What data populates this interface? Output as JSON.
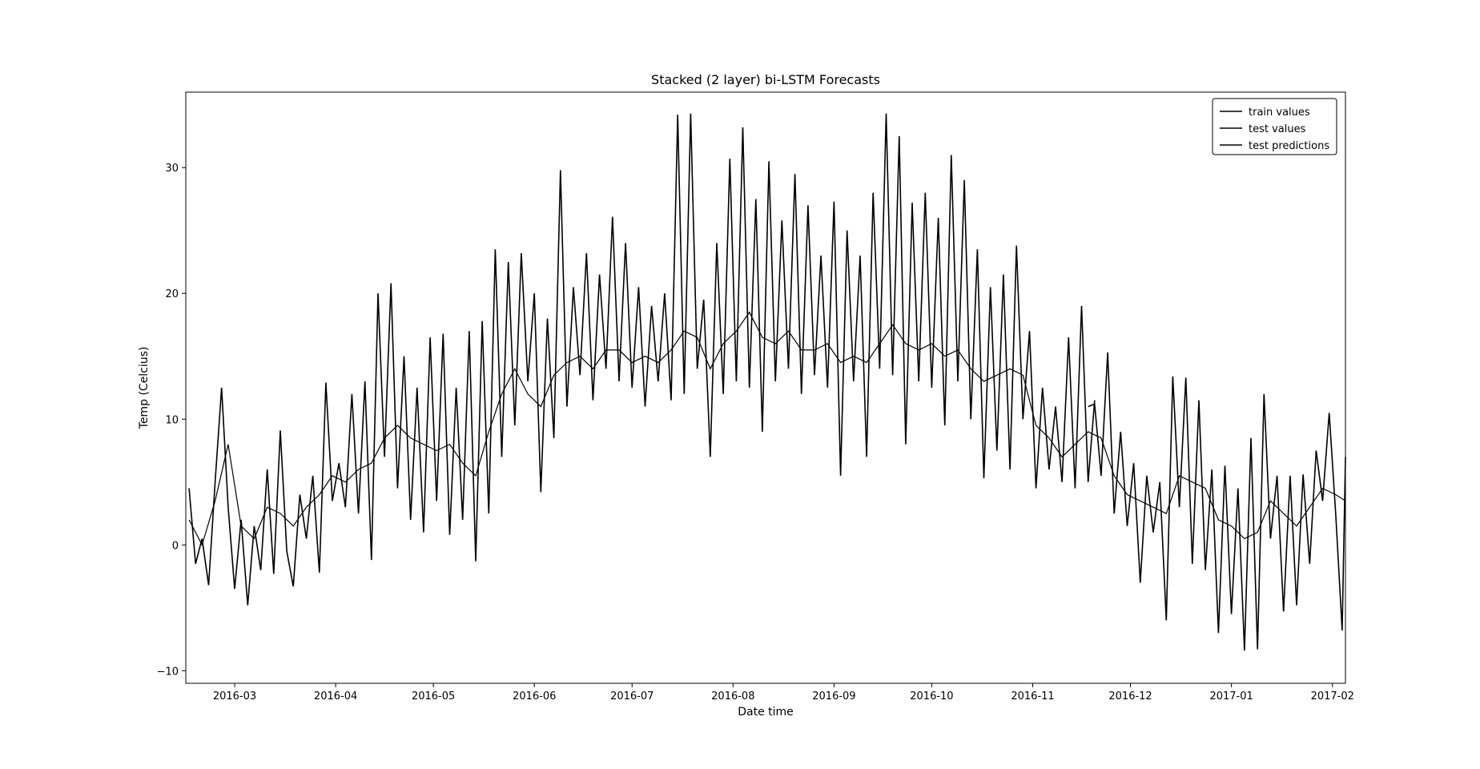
{
  "chart_data": {
    "type": "line",
    "title": "Stacked (2 layer) bi-LSTM Forecasts",
    "xlabel": "Date time",
    "ylabel": "Temp (Celcius)",
    "x_axis": {
      "kind": "date",
      "range": [
        "2016-02-15",
        "2017-02-05"
      ],
      "ticks": [
        "2016-03",
        "2016-04",
        "2016-05",
        "2016-06",
        "2016-07",
        "2016-08",
        "2016-09",
        "2016-10",
        "2016-11",
        "2016-12",
        "2017-01",
        "2017-02"
      ],
      "tick_dates": [
        "2016-03-01",
        "2016-04-01",
        "2016-05-01",
        "2016-06-01",
        "2016-07-01",
        "2016-08-01",
        "2016-09-01",
        "2016-10-01",
        "2016-11-01",
        "2016-12-01",
        "2017-01-01",
        "2017-02-01"
      ]
    },
    "y_axis": {
      "range": [
        -11,
        36
      ],
      "ticks": [
        -10,
        0,
        10,
        20,
        30
      ],
      "tick_labels": [
        "−10",
        "0",
        "10",
        "20",
        "30"
      ]
    },
    "grid": false,
    "legend": {
      "placement": "top-right",
      "entries": [
        "train values",
        "test values",
        "test predictions"
      ]
    },
    "series": [
      {
        "name": "train values",
        "color": "#000000",
        "points": [
          [
            "2016-02-16",
            4.5
          ],
          [
            "2016-02-18",
            -1.5
          ],
          [
            "2016-02-20",
            0.5
          ],
          [
            "2016-02-22",
            -3.2
          ],
          [
            "2016-02-24",
            5.0
          ],
          [
            "2016-02-26",
            12.5
          ],
          [
            "2016-02-28",
            3.0
          ],
          [
            "2016-03-01",
            -3.5
          ],
          [
            "2016-03-03",
            2.0
          ],
          [
            "2016-03-05",
            -4.8
          ],
          [
            "2016-03-07",
            1.5
          ],
          [
            "2016-03-09",
            -2.0
          ],
          [
            "2016-03-11",
            6.0
          ],
          [
            "2016-03-13",
            -2.3
          ],
          [
            "2016-03-15",
            9.1
          ],
          [
            "2016-03-17",
            -0.5
          ],
          [
            "2016-03-19",
            -3.3
          ],
          [
            "2016-03-21",
            4.0
          ],
          [
            "2016-03-23",
            0.5
          ],
          [
            "2016-03-25",
            5.5
          ],
          [
            "2016-03-27",
            -2.2
          ],
          [
            "2016-03-29",
            12.9
          ],
          [
            "2016-03-31",
            3.5
          ],
          [
            "2016-04-02",
            6.5
          ],
          [
            "2016-04-04",
            3.0
          ],
          [
            "2016-04-06",
            12.0
          ],
          [
            "2016-04-08",
            2.5
          ],
          [
            "2016-04-10",
            13.0
          ],
          [
            "2016-04-12",
            -1.2
          ],
          [
            "2016-04-14",
            20.0
          ],
          [
            "2016-04-16",
            7.0
          ],
          [
            "2016-04-18",
            20.8
          ],
          [
            "2016-04-20",
            4.5
          ],
          [
            "2016-04-22",
            15.0
          ],
          [
            "2016-04-24",
            2.0
          ],
          [
            "2016-04-26",
            12.5
          ],
          [
            "2016-04-28",
            1.0
          ],
          [
            "2016-04-30",
            16.5
          ],
          [
            "2016-05-02",
            3.5
          ],
          [
            "2016-05-04",
            16.8
          ],
          [
            "2016-05-06",
            0.8
          ],
          [
            "2016-05-08",
            12.5
          ],
          [
            "2016-05-10",
            2.0
          ],
          [
            "2016-05-12",
            17.0
          ],
          [
            "2016-05-14",
            -1.3
          ],
          [
            "2016-05-16",
            17.8
          ],
          [
            "2016-05-18",
            2.5
          ],
          [
            "2016-05-20",
            23.5
          ],
          [
            "2016-05-22",
            7.0
          ],
          [
            "2016-05-24",
            22.5
          ],
          [
            "2016-05-26",
            9.5
          ],
          [
            "2016-05-28",
            23.2
          ],
          [
            "2016-05-30",
            13.0
          ],
          [
            "2016-06-01",
            20.0
          ],
          [
            "2016-06-03",
            4.2
          ],
          [
            "2016-06-05",
            18.0
          ],
          [
            "2016-06-07",
            8.5
          ],
          [
            "2016-06-09",
            29.8
          ],
          [
            "2016-06-11",
            11.0
          ],
          [
            "2016-06-13",
            20.5
          ],
          [
            "2016-06-15",
            13.5
          ],
          [
            "2016-06-17",
            23.2
          ],
          [
            "2016-06-19",
            11.5
          ],
          [
            "2016-06-21",
            21.5
          ],
          [
            "2016-06-23",
            14.0
          ],
          [
            "2016-06-25",
            26.1
          ],
          [
            "2016-06-27",
            13.0
          ],
          [
            "2016-06-29",
            24.0
          ],
          [
            "2016-07-01",
            12.5
          ],
          [
            "2016-07-03",
            20.5
          ],
          [
            "2016-07-05",
            11.0
          ],
          [
            "2016-07-07",
            19.0
          ],
          [
            "2016-07-09",
            13.0
          ],
          [
            "2016-07-11",
            20.0
          ],
          [
            "2016-07-13",
            11.5
          ],
          [
            "2016-07-15",
            34.2
          ],
          [
            "2016-07-17",
            12.0
          ],
          [
            "2016-07-19",
            34.3
          ],
          [
            "2016-07-21",
            14.0
          ],
          [
            "2016-07-23",
            19.5
          ],
          [
            "2016-07-25",
            7.0
          ],
          [
            "2016-07-27",
            24.0
          ],
          [
            "2016-07-29",
            12.0
          ],
          [
            "2016-07-31",
            30.7
          ],
          [
            "2016-08-02",
            13.0
          ],
          [
            "2016-08-04",
            33.2
          ],
          [
            "2016-08-06",
            12.5
          ],
          [
            "2016-08-08",
            27.5
          ],
          [
            "2016-08-10",
            9.0
          ],
          [
            "2016-08-12",
            30.5
          ],
          [
            "2016-08-14",
            13.0
          ],
          [
            "2016-08-16",
            25.8
          ],
          [
            "2016-08-18",
            14.0
          ],
          [
            "2016-08-20",
            29.5
          ],
          [
            "2016-08-22",
            12.0
          ],
          [
            "2016-08-24",
            27.0
          ],
          [
            "2016-08-26",
            13.5
          ],
          [
            "2016-08-28",
            23.0
          ],
          [
            "2016-08-30",
            12.5
          ],
          [
            "2016-09-01",
            27.3
          ],
          [
            "2016-09-03",
            5.5
          ],
          [
            "2016-09-05",
            25.0
          ],
          [
            "2016-09-07",
            13.0
          ],
          [
            "2016-09-09",
            23.0
          ],
          [
            "2016-09-11",
            7.0
          ],
          [
            "2016-09-13",
            28.0
          ],
          [
            "2016-09-15",
            14.0
          ],
          [
            "2016-09-17",
            34.3
          ],
          [
            "2016-09-19",
            13.5
          ],
          [
            "2016-09-21",
            32.5
          ],
          [
            "2016-09-23",
            8.0
          ],
          [
            "2016-09-25",
            27.2
          ],
          [
            "2016-09-27",
            13.0
          ],
          [
            "2016-09-29",
            28.0
          ],
          [
            "2016-10-01",
            12.5
          ],
          [
            "2016-10-03",
            26.0
          ],
          [
            "2016-10-05",
            9.5
          ],
          [
            "2016-10-07",
            31.0
          ],
          [
            "2016-10-09",
            13.0
          ],
          [
            "2016-10-11",
            29.0
          ],
          [
            "2016-10-13",
            10.0
          ],
          [
            "2016-10-15",
            23.5
          ],
          [
            "2016-10-17",
            5.3
          ],
          [
            "2016-10-19",
            20.5
          ],
          [
            "2016-10-21",
            7.5
          ],
          [
            "2016-10-23",
            21.5
          ],
          [
            "2016-10-25",
            6.0
          ],
          [
            "2016-10-27",
            23.8
          ],
          [
            "2016-10-29",
            10.0
          ],
          [
            "2016-10-31",
            17.0
          ],
          [
            "2016-11-02",
            4.5
          ],
          [
            "2016-11-04",
            12.5
          ],
          [
            "2016-11-06",
            6.0
          ],
          [
            "2016-11-08",
            11.0
          ],
          [
            "2016-11-10",
            5.0
          ],
          [
            "2016-11-12",
            16.5
          ],
          [
            "2016-11-14",
            4.5
          ],
          [
            "2016-11-16",
            19.0
          ],
          [
            "2016-11-18",
            5.0
          ],
          [
            "2016-11-20",
            11.5
          ]
        ]
      },
      {
        "name": "test values",
        "color": "#000000",
        "points": [
          [
            "2016-11-18",
            11.0
          ],
          [
            "2016-11-20",
            11.2
          ],
          [
            "2016-11-22",
            5.5
          ],
          [
            "2016-11-24",
            15.3
          ],
          [
            "2016-11-26",
            2.5
          ],
          [
            "2016-11-28",
            9.0
          ],
          [
            "2016-11-30",
            1.5
          ],
          [
            "2016-12-02",
            6.5
          ],
          [
            "2016-12-04",
            -3.0
          ],
          [
            "2016-12-06",
            5.5
          ],
          [
            "2016-12-08",
            1.0
          ],
          [
            "2016-12-10",
            5.0
          ],
          [
            "2016-12-12",
            -6.0
          ],
          [
            "2016-12-14",
            13.4
          ],
          [
            "2016-12-16",
            3.0
          ],
          [
            "2016-12-18",
            13.3
          ],
          [
            "2016-12-20",
            -1.5
          ],
          [
            "2016-12-22",
            11.5
          ],
          [
            "2016-12-24",
            -2.0
          ],
          [
            "2016-12-26",
            6.0
          ],
          [
            "2016-12-28",
            -7.0
          ],
          [
            "2016-12-30",
            6.3
          ],
          [
            "2017-01-01",
            -5.5
          ],
          [
            "2017-01-03",
            4.5
          ],
          [
            "2017-01-05",
            -8.4
          ],
          [
            "2017-01-07",
            8.5
          ],
          [
            "2017-01-09",
            -8.3
          ],
          [
            "2017-01-11",
            12.0
          ],
          [
            "2017-01-13",
            0.5
          ],
          [
            "2017-01-15",
            5.5
          ],
          [
            "2017-01-17",
            -5.3
          ],
          [
            "2017-01-19",
            5.5
          ],
          [
            "2017-01-21",
            -4.8
          ],
          [
            "2017-01-23",
            5.6
          ],
          [
            "2017-01-25",
            -1.5
          ],
          [
            "2017-01-27",
            7.5
          ],
          [
            "2017-01-29",
            3.5
          ],
          [
            "2017-01-31",
            10.5
          ],
          [
            "2017-02-02",
            2.5
          ],
          [
            "2017-02-04",
            -6.8
          ],
          [
            "2017-02-05",
            7.0
          ]
        ]
      },
      {
        "name": "test predictions",
        "color": "#000000",
        "points": [
          [
            "2016-02-16",
            2.0
          ],
          [
            "2016-02-20",
            0.0
          ],
          [
            "2016-02-24",
            3.5
          ],
          [
            "2016-02-28",
            8.0
          ],
          [
            "2016-03-03",
            1.5
          ],
          [
            "2016-03-07",
            0.5
          ],
          [
            "2016-03-11",
            3.0
          ],
          [
            "2016-03-15",
            2.5
          ],
          [
            "2016-03-19",
            1.5
          ],
          [
            "2016-03-23",
            3.0
          ],
          [
            "2016-03-27",
            4.0
          ],
          [
            "2016-03-31",
            5.5
          ],
          [
            "2016-04-04",
            5.0
          ],
          [
            "2016-04-08",
            6.0
          ],
          [
            "2016-04-12",
            6.5
          ],
          [
            "2016-04-16",
            8.5
          ],
          [
            "2016-04-20",
            9.5
          ],
          [
            "2016-04-24",
            8.5
          ],
          [
            "2016-04-28",
            8.0
          ],
          [
            "2016-05-02",
            7.5
          ],
          [
            "2016-05-06",
            8.0
          ],
          [
            "2016-05-10",
            6.5
          ],
          [
            "2016-05-14",
            5.5
          ],
          [
            "2016-05-18",
            9.0
          ],
          [
            "2016-05-22",
            12.0
          ],
          [
            "2016-05-26",
            14.0
          ],
          [
            "2016-05-30",
            12.0
          ],
          [
            "2016-06-03",
            11.0
          ],
          [
            "2016-06-07",
            13.5
          ],
          [
            "2016-06-11",
            14.5
          ],
          [
            "2016-06-15",
            15.0
          ],
          [
            "2016-06-19",
            14.0
          ],
          [
            "2016-06-23",
            15.5
          ],
          [
            "2016-06-27",
            15.5
          ],
          [
            "2016-07-01",
            14.5
          ],
          [
            "2016-07-05",
            15.0
          ],
          [
            "2016-07-09",
            14.5
          ],
          [
            "2016-07-13",
            15.5
          ],
          [
            "2016-07-17",
            17.0
          ],
          [
            "2016-07-21",
            16.5
          ],
          [
            "2016-07-25",
            14.0
          ],
          [
            "2016-07-29",
            16.0
          ],
          [
            "2016-08-02",
            17.0
          ],
          [
            "2016-08-06",
            18.5
          ],
          [
            "2016-08-10",
            16.5
          ],
          [
            "2016-08-14",
            16.0
          ],
          [
            "2016-08-18",
            17.0
          ],
          [
            "2016-08-22",
            15.5
          ],
          [
            "2016-08-26",
            15.5
          ],
          [
            "2016-08-30",
            16.0
          ],
          [
            "2016-09-03",
            14.5
          ],
          [
            "2016-09-07",
            15.0
          ],
          [
            "2016-09-11",
            14.5
          ],
          [
            "2016-09-15",
            16.0
          ],
          [
            "2016-09-19",
            17.5
          ],
          [
            "2016-09-23",
            16.0
          ],
          [
            "2016-09-27",
            15.5
          ],
          [
            "2016-10-01",
            16.0
          ],
          [
            "2016-10-05",
            15.0
          ],
          [
            "2016-10-09",
            15.5
          ],
          [
            "2016-10-13",
            14.0
          ],
          [
            "2016-10-17",
            13.0
          ],
          [
            "2016-10-21",
            13.5
          ],
          [
            "2016-10-25",
            14.0
          ],
          [
            "2016-10-29",
            13.5
          ],
          [
            "2016-11-02",
            9.5
          ],
          [
            "2016-11-06",
            8.5
          ],
          [
            "2016-11-10",
            7.0
          ],
          [
            "2016-11-14",
            8.0
          ],
          [
            "2016-11-18",
            9.0
          ],
          [
            "2016-11-22",
            8.5
          ],
          [
            "2016-11-26",
            5.5
          ],
          [
            "2016-11-30",
            4.0
          ],
          [
            "2016-12-04",
            3.5
          ],
          [
            "2016-12-08",
            3.0
          ],
          [
            "2016-12-12",
            2.5
          ],
          [
            "2016-12-16",
            5.5
          ],
          [
            "2016-12-20",
            5.0
          ],
          [
            "2016-12-24",
            4.5
          ],
          [
            "2016-12-28",
            2.0
          ],
          [
            "2017-01-01",
            1.5
          ],
          [
            "2017-01-05",
            0.5
          ],
          [
            "2017-01-09",
            1.0
          ],
          [
            "2017-01-13",
            3.5
          ],
          [
            "2017-01-17",
            2.5
          ],
          [
            "2017-01-21",
            1.5
          ],
          [
            "2017-01-25",
            3.0
          ],
          [
            "2017-01-29",
            4.5
          ],
          [
            "2017-02-02",
            4.0
          ],
          [
            "2017-02-05",
            3.5
          ]
        ]
      }
    ]
  }
}
